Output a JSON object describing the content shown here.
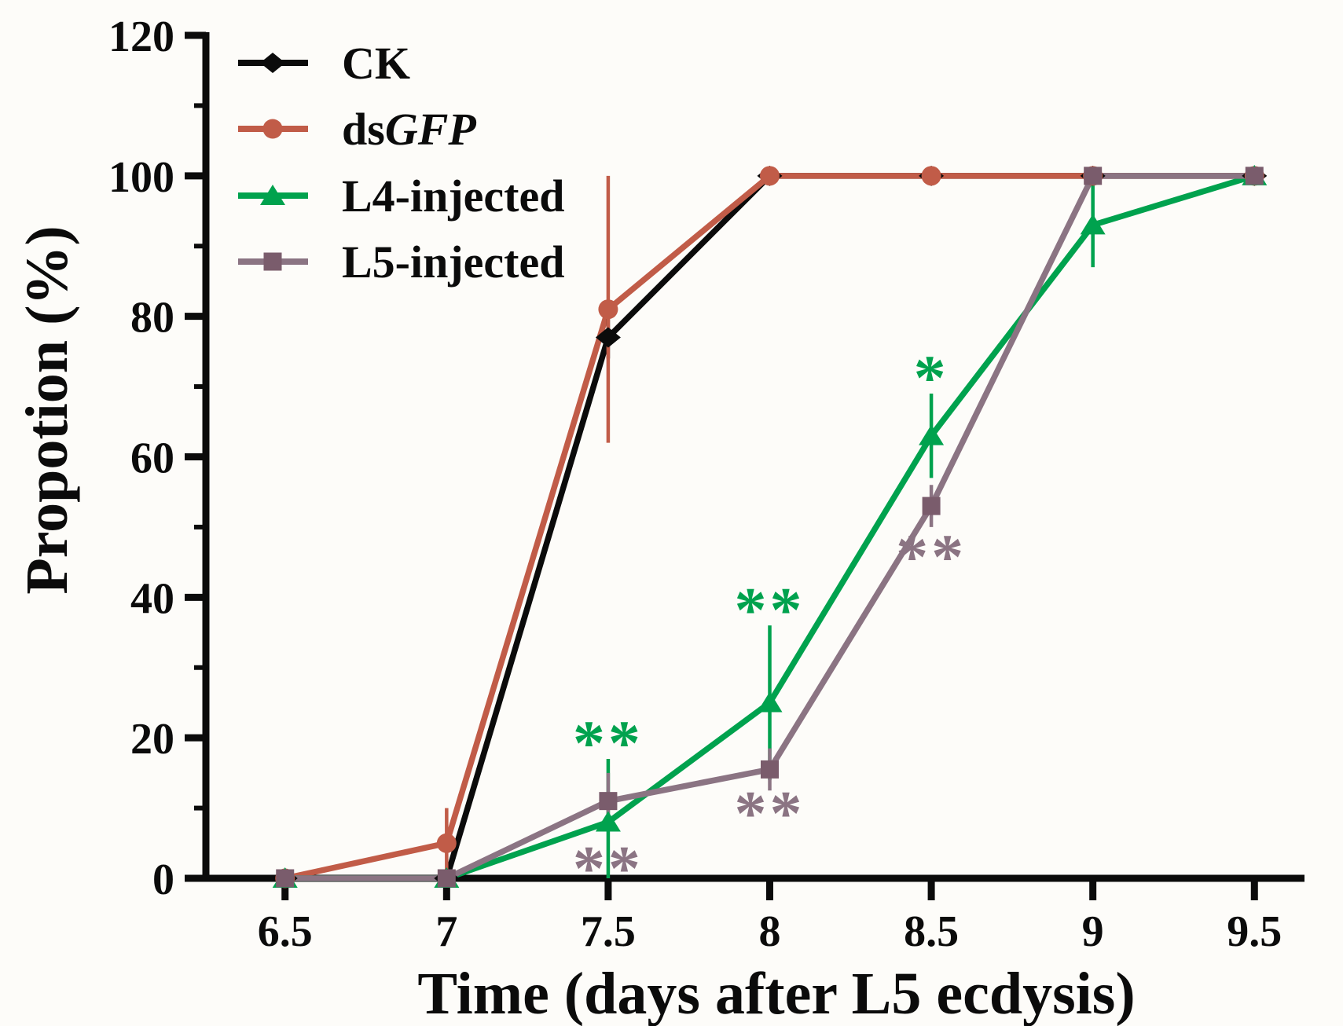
{
  "background": "#fdfcf9",
  "axis_color": "#0b0b0b",
  "chart_data": {
    "type": "line",
    "title": "",
    "xlabel": "Time (days after L5 ecdysis)",
    "ylabel": "Propotion (%)",
    "x": [
      6.5,
      7,
      7.5,
      8,
      8.5,
      9,
      9.5
    ],
    "xtick_labels": [
      "6.5",
      "7",
      "7.5",
      "8",
      "8.5",
      "9",
      "9.5"
    ],
    "yticks_major": [
      0,
      20,
      40,
      60,
      80,
      100,
      120
    ],
    "yticks_minor": [
      10,
      30,
      50,
      70,
      90,
      110
    ],
    "xlim": [
      6.255,
      9.655
    ],
    "ylim": [
      0,
      120
    ],
    "grid": false,
    "legend_position": "top-left",
    "series": [
      {
        "name": "CK",
        "label_parts": [
          {
            "text": "CK",
            "italic": false
          }
        ],
        "color": "#0b0b0b",
        "line_color": "#0b0b0b",
        "marker": "diamond",
        "values": [
          0,
          0,
          77,
          100,
          100,
          100,
          100
        ],
        "errors": [
          0,
          0,
          3,
          0,
          0,
          0,
          0
        ]
      },
      {
        "name": "dsGFP",
        "label_parts": [
          {
            "text": "ds",
            "italic": false
          },
          {
            "text": "GFP",
            "italic": true
          }
        ],
        "color": "#c15c48",
        "line_color": "#c15c48",
        "marker": "circle",
        "values": [
          0,
          5,
          81,
          100,
          100,
          100,
          100
        ],
        "errors": [
          0,
          5,
          19,
          0,
          0,
          0,
          0
        ]
      },
      {
        "name": "L4-injected",
        "label_parts": [
          {
            "text": "L4-injected",
            "italic": false
          }
        ],
        "color": "#00a24e",
        "line_color": "#00a24e",
        "marker": "triangle",
        "values": [
          0,
          0,
          8,
          25,
          63,
          93,
          100
        ],
        "errors": [
          0,
          0,
          9,
          11,
          6,
          6,
          0
        ]
      },
      {
        "name": "L5-injected",
        "label_parts": [
          {
            "text": "L5-injected",
            "italic": false
          }
        ],
        "color": "#7a5c6c",
        "line_color": "#8b7483",
        "marker": "square",
        "values": [
          0,
          0,
          11,
          15.5,
          53,
          100,
          100
        ],
        "errors": [
          0,
          0,
          4,
          3,
          3,
          0,
          0
        ]
      }
    ],
    "annotations": [
      {
        "text": "**",
        "x": 7.5,
        "y": 20,
        "color": "#00a24e"
      },
      {
        "text": "**",
        "x": 8,
        "y": 39,
        "color": "#00a24e"
      },
      {
        "text": "*",
        "x": 8.5,
        "y": 72,
        "color": "#00a24e"
      },
      {
        "text": "**",
        "x": 7.5,
        "y": 2.2,
        "color": "#8b7483"
      },
      {
        "text": "**",
        "x": 8,
        "y": 10,
        "color": "#8b7483"
      },
      {
        "text": "**",
        "x": 8.5,
        "y": 46.5,
        "color": "#8b7483"
      }
    ]
  }
}
